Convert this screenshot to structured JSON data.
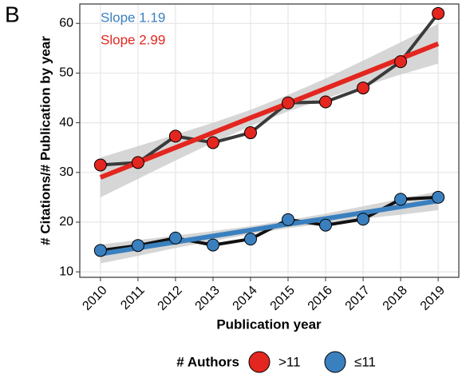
{
  "chart_data": {
    "type": "line",
    "panel_label": "B",
    "xlabel": "Publication year",
    "ylabel": "# Citations/# Publication by year",
    "x": [
      2010,
      2011,
      2012,
      2013,
      2014,
      2015,
      2016,
      2017,
      2018,
      2019
    ],
    "xlim": [
      2009.45,
      2019.55
    ],
    "xticks": [
      2010,
      2011,
      2012,
      2013,
      2014,
      2015,
      2016,
      2017,
      2018,
      2019
    ],
    "ylim": [
      8.9,
      63.9
    ],
    "yticks": [
      10,
      20,
      30,
      40,
      50,
      60
    ],
    "grid": true,
    "legend_title": "# Authors",
    "legend_position": "bottom",
    "series": [
      {
        "name": ">11",
        "color": "#e3261f",
        "line_color": "#3a3a3a",
        "values": [
          31.5,
          32,
          37.3,
          36,
          38,
          44,
          44.2,
          47,
          52.3,
          62
        ],
        "fit": [
          29,
          32,
          35,
          38,
          41,
          43.9,
          46.9,
          49.9,
          52.9,
          55.9
        ],
        "fit_lower": [
          25.0,
          28.7,
          32.4,
          36.0,
          39.3,
          42.3,
          44.9,
          47.3,
          49.7,
          51.9
        ],
        "fit_upper": [
          33.0,
          35.3,
          37.6,
          40.0,
          42.6,
          45.6,
          48.9,
          52.5,
          56.2,
          59.9
        ],
        "annotation": "Slope 2.99"
      },
      {
        "name": "≤11",
        "color": "#3a80bf",
        "line_color": "#111111",
        "values": [
          14.3,
          15.3,
          16.8,
          15.4,
          16.6,
          20.5,
          19.4,
          20.6,
          24.6,
          25.0
        ],
        "fit": [
          13.6,
          14.8,
          16.0,
          17.2,
          18.4,
          19.6,
          20.7,
          21.9,
          23.1,
          24.3
        ],
        "fit_lower": [
          11.7,
          13.2,
          14.8,
          16.2,
          17.6,
          18.8,
          19.7,
          20.7,
          21.5,
          22.4
        ],
        "fit_upper": [
          15.5,
          16.4,
          17.3,
          18.2,
          19.2,
          20.4,
          21.7,
          23.2,
          24.7,
          26.2
        ],
        "annotation": "Slope 1.19"
      }
    ]
  }
}
